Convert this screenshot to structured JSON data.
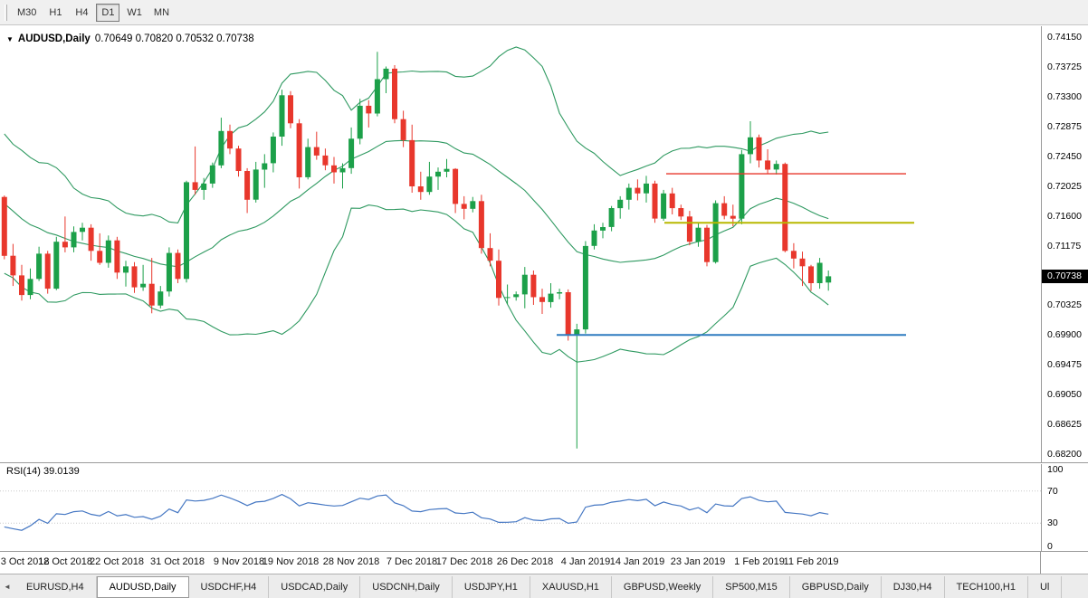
{
  "toolbar": {
    "timeframes": [
      "M30",
      "H1",
      "H4",
      "D1",
      "W1",
      "MN"
    ],
    "active_timeframe": "D1"
  },
  "chart": {
    "symbol_marker": "▼",
    "symbol": "AUDUSD,Daily",
    "ohlc": "0.70649 0.70820 0.70532 0.70738",
    "current_price": "0.70738",
    "price_axis": [
      "0.74150",
      "0.73725",
      "0.73300",
      "0.72875",
      "0.72450",
      "0.72025",
      "0.71600",
      "0.71175",
      "0.70750",
      "0.70325",
      "0.69900",
      "0.69475",
      "0.69050",
      "0.68625",
      "0.68200"
    ]
  },
  "rsi_panel": {
    "label": "RSI(14) 39.0139",
    "axis": [
      "100",
      "70",
      "30",
      "0"
    ]
  },
  "tabs": {
    "scroll_left": "◄",
    "items": [
      {
        "label": "EURUSD,H4",
        "active": false
      },
      {
        "label": "AUDUSD,Daily",
        "active": true
      },
      {
        "label": "USDCHF,H4",
        "active": false
      },
      {
        "label": "USDCAD,Daily",
        "active": false
      },
      {
        "label": "USDCNH,Daily",
        "active": false
      },
      {
        "label": "USDJPY,H1",
        "active": false
      },
      {
        "label": "XAUUSD,H1",
        "active": false
      },
      {
        "label": "GBPUSD,Weekly",
        "active": false
      },
      {
        "label": "SP500,M15",
        "active": false
      },
      {
        "label": "GBPUSD,Daily",
        "active": false
      },
      {
        "label": "DJ30,H4",
        "active": false
      },
      {
        "label": "TECH100,H1",
        "active": false
      },
      {
        "label": "Ul",
        "active": false
      }
    ]
  },
  "colors": {
    "bull": "#1CA049",
    "bear": "#E8372C",
    "bollinger": "#2E9960",
    "rsi_line": "#4577C3",
    "badge_bg": "#000000",
    "badge_text": "#FFFFFF"
  },
  "chart_data": {
    "type": "candlestick",
    "symbol": "AUDUSD",
    "timeframe": "Daily",
    "price_range": [
      0.682,
      0.7415
    ],
    "bar_area_frac": 0.8,
    "rsi_levels": [
      70,
      30
    ],
    "indicators": [
      {
        "name": "Bollinger Bands",
        "period": 20,
        "deviation": 2
      },
      {
        "name": "RSI",
        "period": 14,
        "last_value": 39.0139
      }
    ],
    "pre_window_closes": [
      0.7305,
      0.7288,
      0.7266,
      0.7242,
      0.7205,
      0.7182,
      0.719,
      0.7212,
      0.7228,
      0.7192,
      0.7162,
      0.7133,
      0.7152,
      0.7178,
      0.716,
      0.7141,
      0.7122,
      0.7112,
      0.7131,
      0.715
    ],
    "candles": [
      [
        0.7187,
        0.7189,
        0.7098,
        0.7103
      ],
      [
        0.7103,
        0.712,
        0.706,
        0.7075
      ],
      [
        0.7075,
        0.709,
        0.7039,
        0.7047
      ],
      [
        0.7047,
        0.7085,
        0.7041,
        0.707
      ],
      [
        0.707,
        0.7116,
        0.7067,
        0.7106
      ],
      [
        0.7106,
        0.711,
        0.7049,
        0.7056
      ],
      [
        0.7056,
        0.713,
        0.7054,
        0.7123
      ],
      [
        0.7123,
        0.7159,
        0.7108,
        0.7115
      ],
      [
        0.7115,
        0.7145,
        0.7108,
        0.7137
      ],
      [
        0.7137,
        0.715,
        0.7125,
        0.7143
      ],
      [
        0.7143,
        0.7148,
        0.7096,
        0.711
      ],
      [
        0.711,
        0.7135,
        0.709,
        0.7093
      ],
      [
        0.7093,
        0.7132,
        0.7086,
        0.7125
      ],
      [
        0.7125,
        0.713,
        0.707,
        0.7079
      ],
      [
        0.7079,
        0.7096,
        0.7059,
        0.7088
      ],
      [
        0.7088,
        0.7094,
        0.705,
        0.7058
      ],
      [
        0.7058,
        0.709,
        0.7053,
        0.7063
      ],
      [
        0.7063,
        0.71,
        0.7021,
        0.7032
      ],
      [
        0.7032,
        0.706,
        0.7028,
        0.7052
      ],
      [
        0.7052,
        0.7115,
        0.7045,
        0.7107
      ],
      [
        0.7107,
        0.7112,
        0.7064,
        0.707
      ],
      [
        0.707,
        0.721,
        0.7065,
        0.7208
      ],
      [
        0.7208,
        0.7259,
        0.719,
        0.7197
      ],
      [
        0.7197,
        0.7214,
        0.7183,
        0.7206
      ],
      [
        0.7206,
        0.7236,
        0.72,
        0.7232
      ],
      [
        0.7232,
        0.73,
        0.7228,
        0.7281
      ],
      [
        0.7281,
        0.729,
        0.7248,
        0.7256
      ],
      [
        0.7256,
        0.726,
        0.7216,
        0.7224
      ],
      [
        0.7224,
        0.7228,
        0.7164,
        0.7183
      ],
      [
        0.7183,
        0.7237,
        0.7179,
        0.7226
      ],
      [
        0.7226,
        0.7248,
        0.72,
        0.7235
      ],
      [
        0.7235,
        0.7279,
        0.7222,
        0.7273
      ],
      [
        0.7273,
        0.734,
        0.726,
        0.7332
      ],
      [
        0.7332,
        0.7338,
        0.7285,
        0.7292
      ],
      [
        0.7292,
        0.7298,
        0.7199,
        0.7215
      ],
      [
        0.7215,
        0.727,
        0.7212,
        0.7258
      ],
      [
        0.7258,
        0.728,
        0.724,
        0.7246
      ],
      [
        0.7246,
        0.7256,
        0.7225,
        0.7232
      ],
      [
        0.7232,
        0.7244,
        0.7206,
        0.7222
      ],
      [
        0.7222,
        0.7235,
        0.7199,
        0.7228
      ],
      [
        0.7228,
        0.7286,
        0.722,
        0.727
      ],
      [
        0.727,
        0.7327,
        0.7262,
        0.7317
      ],
      [
        0.7317,
        0.7325,
        0.7286,
        0.7306
      ],
      [
        0.7306,
        0.7394,
        0.7302,
        0.7355
      ],
      [
        0.7355,
        0.7373,
        0.7335,
        0.737
      ],
      [
        0.737,
        0.7375,
        0.7292,
        0.7298
      ],
      [
        0.7298,
        0.731,
        0.7258,
        0.7268
      ],
      [
        0.7268,
        0.729,
        0.7193,
        0.7202
      ],
      [
        0.7202,
        0.7223,
        0.7183,
        0.7194
      ],
      [
        0.7194,
        0.7237,
        0.719,
        0.7216
      ],
      [
        0.7216,
        0.7229,
        0.7197,
        0.7223
      ],
      [
        0.7223,
        0.7241,
        0.7215,
        0.7227
      ],
      [
        0.7227,
        0.7228,
        0.7164,
        0.7177
      ],
      [
        0.7177,
        0.7188,
        0.7155,
        0.717
      ],
      [
        0.717,
        0.7187,
        0.7165,
        0.7181
      ],
      [
        0.7181,
        0.719,
        0.7106,
        0.7114
      ],
      [
        0.7114,
        0.7135,
        0.7088,
        0.7096
      ],
      [
        0.7096,
        0.7112,
        0.7032,
        0.7043
      ],
      [
        0.7043,
        0.7062,
        0.7034,
        0.7044
      ],
      [
        0.7044,
        0.7052,
        0.7039,
        0.7048
      ],
      [
        0.7048,
        0.7087,
        0.7028,
        0.7076
      ],
      [
        0.7076,
        0.7082,
        0.7033,
        0.7044
      ],
      [
        0.7044,
        0.7056,
        0.702,
        0.7037
      ],
      [
        0.7037,
        0.7064,
        0.7029,
        0.7049
      ],
      [
        0.7049,
        0.7056,
        0.7041,
        0.7051
      ],
      [
        0.7051,
        0.7055,
        0.6982,
        0.699
      ],
      [
        0.699,
        0.7006,
        0.6828,
        0.6998
      ],
      [
        0.6998,
        0.7124,
        0.6992,
        0.7117
      ],
      [
        0.7117,
        0.7148,
        0.7112,
        0.7139
      ],
      [
        0.7139,
        0.715,
        0.7128,
        0.7144
      ],
      [
        0.7144,
        0.7174,
        0.7138,
        0.7171
      ],
      [
        0.7171,
        0.7188,
        0.7156,
        0.7183
      ],
      [
        0.7183,
        0.7206,
        0.7169,
        0.72
      ],
      [
        0.72,
        0.7212,
        0.7182,
        0.7192
      ],
      [
        0.7192,
        0.7217,
        0.7179,
        0.7206
      ],
      [
        0.7206,
        0.721,
        0.715,
        0.7156
      ],
      [
        0.7156,
        0.7197,
        0.7153,
        0.7192
      ],
      [
        0.7192,
        0.72,
        0.7162,
        0.7171
      ],
      [
        0.7171,
        0.7176,
        0.7154,
        0.7159
      ],
      [
        0.7159,
        0.7167,
        0.7118,
        0.7123
      ],
      [
        0.7123,
        0.7151,
        0.7116,
        0.7143
      ],
      [
        0.7143,
        0.7147,
        0.7088,
        0.7094
      ],
      [
        0.7094,
        0.7182,
        0.7092,
        0.7178
      ],
      [
        0.7178,
        0.7188,
        0.7155,
        0.716
      ],
      [
        0.716,
        0.7176,
        0.7145,
        0.7156
      ],
      [
        0.7156,
        0.7254,
        0.7148,
        0.7248
      ],
      [
        0.7248,
        0.7295,
        0.7235,
        0.7272
      ],
      [
        0.7272,
        0.7276,
        0.7229,
        0.7239
      ],
      [
        0.7239,
        0.7255,
        0.722,
        0.7226
      ],
      [
        0.7226,
        0.7239,
        0.7219,
        0.7234
      ],
      [
        0.7234,
        0.7236,
        0.7108,
        0.711
      ],
      [
        0.711,
        0.7121,
        0.7085,
        0.7099
      ],
      [
        0.7099,
        0.7109,
        0.706,
        0.7088
      ],
      [
        0.7088,
        0.709,
        0.7053,
        0.7064
      ],
      [
        0.7064,
        0.71,
        0.7056,
        0.7093
      ],
      [
        0.70649,
        0.7082,
        0.70532,
        0.70738
      ]
    ],
    "date_ticks": [
      {
        "bar": 0,
        "label": "3 Oct 2018"
      },
      {
        "bar": 7,
        "label": "12 Oct 2018"
      },
      {
        "bar": 13,
        "label": "22 Oct 2018"
      },
      {
        "bar": 20,
        "label": "31 Oct 2018"
      },
      {
        "bar": 27,
        "label": "9 Nov 2018"
      },
      {
        "bar": 33,
        "label": "19 Nov 2018"
      },
      {
        "bar": 40,
        "label": "28 Nov 2018"
      },
      {
        "bar": 47,
        "label": "7 Dec 2018"
      },
      {
        "bar": 53,
        "label": "17 Dec 2018"
      },
      {
        "bar": 60,
        "label": "26 Dec 2018"
      },
      {
        "bar": 67,
        "label": "4 Jan 2019"
      },
      {
        "bar": 73,
        "label": "14 Jan 2019"
      },
      {
        "bar": 80,
        "label": "23 Jan 2019"
      },
      {
        "bar": 87,
        "label": "1 Feb 2019"
      },
      {
        "bar": 93,
        "label": "11 Feb 2019"
      }
    ],
    "hlines": [
      {
        "name": "resistance-line-red",
        "color": "#E8372C",
        "price": 0.722,
        "from": 0.64,
        "to": 0.87,
        "width": 1.4
      },
      {
        "name": "resistance-line-yellow",
        "color": "#B8B800",
        "price": 0.715,
        "from": 0.638,
        "to": 0.878,
        "width": 2
      },
      {
        "name": "support-line-blue",
        "color": "#2E7CC0",
        "price": 0.699,
        "from": 0.535,
        "to": 0.87,
        "width": 2
      }
    ]
  }
}
